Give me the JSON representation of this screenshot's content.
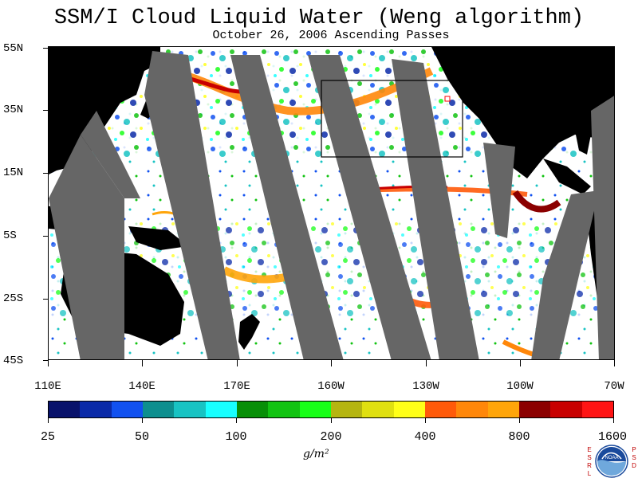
{
  "title": "SSM/I Cloud Liquid Water (Weng algorithm)",
  "subtitle": "October 26, 2006  Ascending Passes",
  "lat_labels": [
    "55N",
    "35N",
    "15N",
    "5S",
    "25S",
    "45S"
  ],
  "lon_labels": [
    "110E",
    "140E",
    "170E",
    "160W",
    "130W",
    "100W",
    "70W"
  ],
  "colorbar": {
    "colors": [
      "#08126b",
      "#0a2aa8",
      "#1151f0",
      "#0d8f8f",
      "#18c3c3",
      "#18ffff",
      "#078f07",
      "#11c311",
      "#18ff18",
      "#b5b510",
      "#e0e010",
      "#ffff18",
      "#ff5a0a",
      "#ff870a",
      "#ffa50a",
      "#8b0000",
      "#c80000",
      "#ff1414"
    ],
    "labels": [
      "25",
      "50",
      "100",
      "200",
      "400",
      "800",
      "1600"
    ],
    "unit": "g/m²"
  },
  "logo": {
    "left_letters": [
      "E",
      "S",
      "R",
      "L"
    ],
    "right_letters": [
      "P",
      "S",
      "D"
    ],
    "center": "NOAA"
  },
  "colors": {
    "land": "#000000",
    "swath_gap": "#666666",
    "ocean_clear": "#ffffff",
    "highlight_box": "#000000",
    "marker": "#ff0000"
  }
}
